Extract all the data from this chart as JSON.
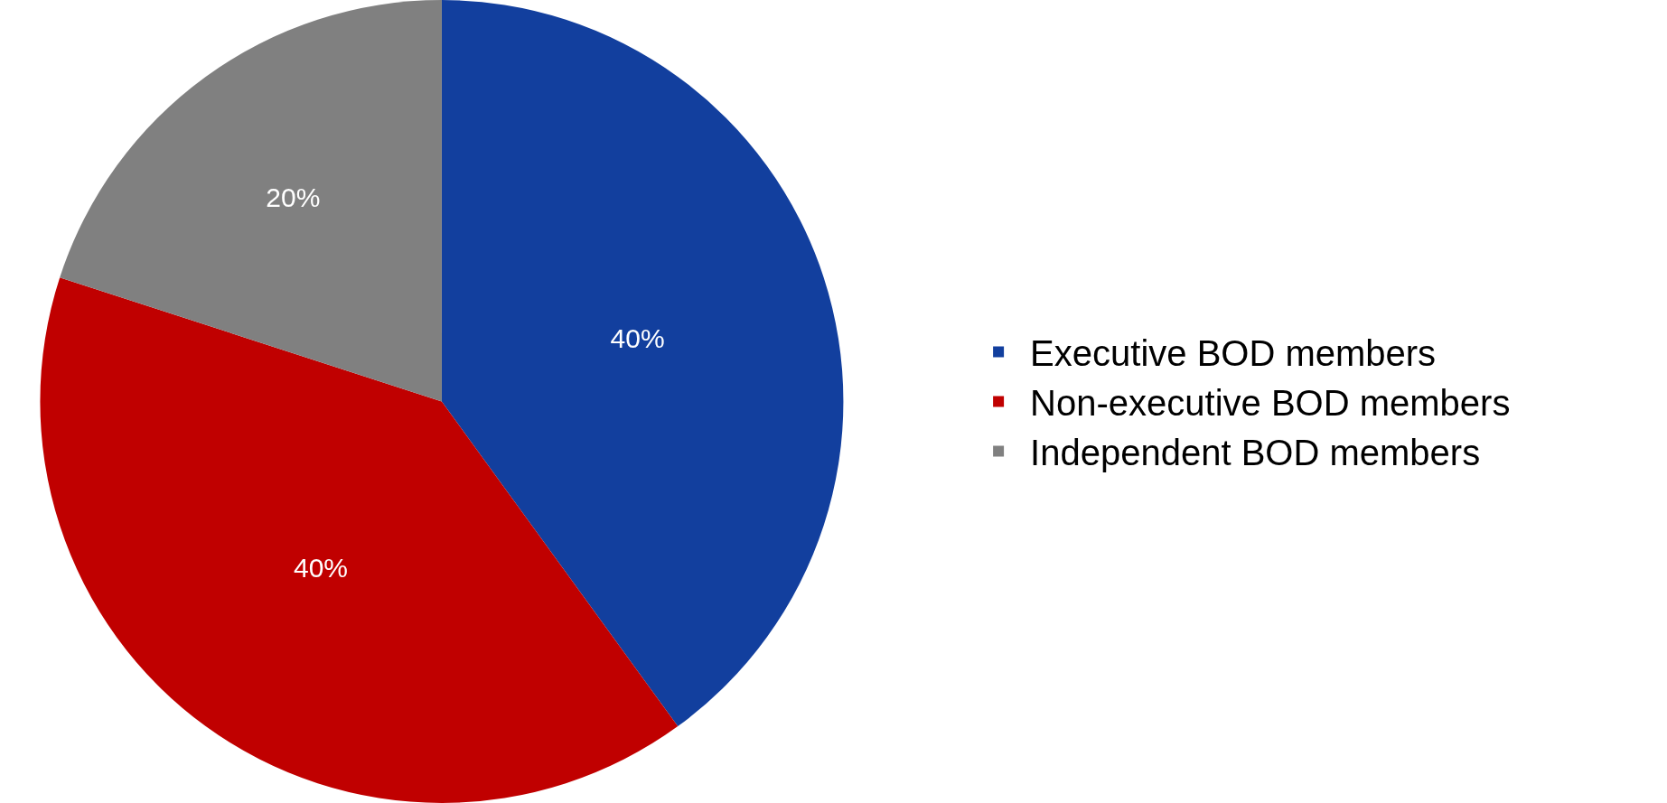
{
  "chart_data": {
    "type": "pie",
    "categories": [
      "Executive BOD members",
      "Non-executive BOD members",
      "Independent BOD members"
    ],
    "values": [
      40,
      40,
      20
    ],
    "colors": [
      "#123f9e",
      "#c00000",
      "#808080"
    ],
    "value_labels": [
      "40%",
      "40%",
      "20%"
    ],
    "legend": "right"
  }
}
